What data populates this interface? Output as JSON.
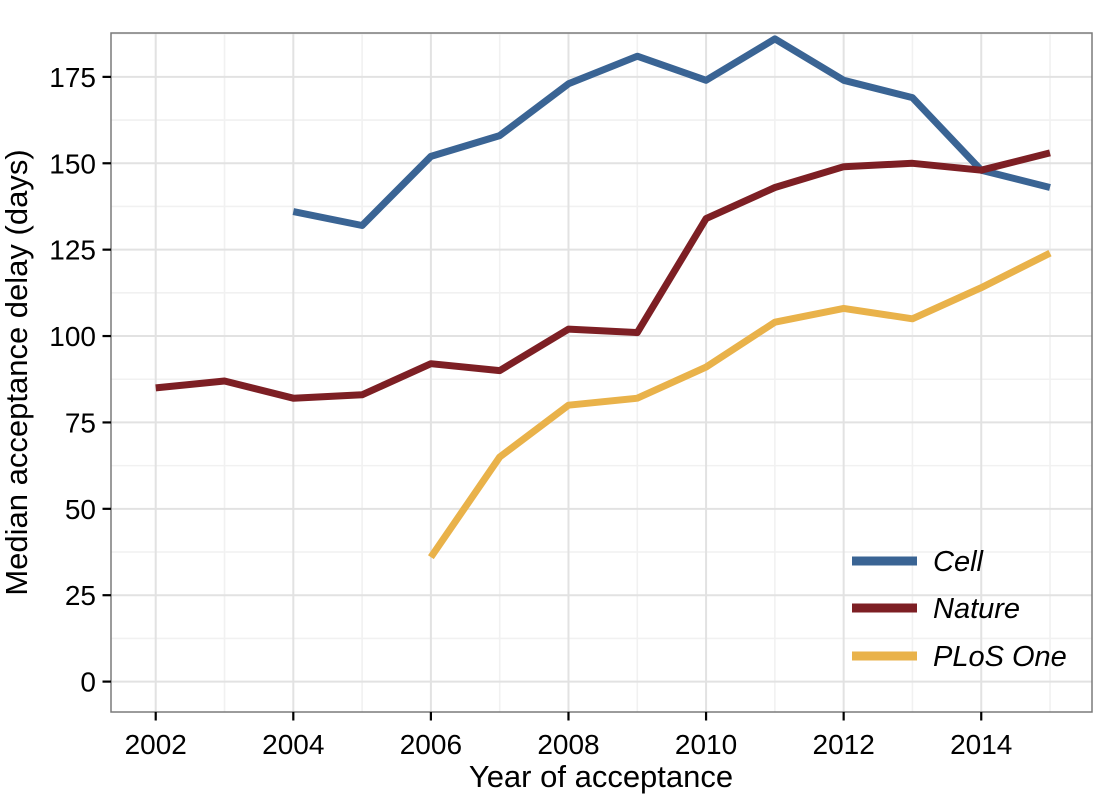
{
  "chart_data": {
    "type": "line",
    "title": "",
    "xlabel": "Year of acceptance",
    "ylabel": "Median acceptance delay (days)",
    "x_ticks": [
      2002,
      2004,
      2006,
      2008,
      2010,
      2012,
      2014
    ],
    "y_ticks": [
      0,
      25,
      50,
      75,
      100,
      125,
      150,
      175
    ],
    "x_range": [
      2001.35,
      2015.61
    ],
    "y_range": [
      -8.8,
      187.7
    ],
    "grid": {
      "on": true,
      "major_color": "#E2E2E2",
      "minor_color": "#F1F1F1",
      "minor_x": [
        2003,
        2005,
        2007,
        2009,
        2011,
        2013,
        2015
      ],
      "minor_y": [
        12.5,
        37.5,
        62.5,
        87.5,
        112.5,
        137.5,
        162.5,
        187.5
      ]
    },
    "panel_border_color": "#7A7A7A",
    "legend": {
      "position": "inside-bottom-right",
      "items": [
        "Cell",
        "Nature",
        "PLoS One"
      ]
    },
    "series": [
      {
        "name": "Cell",
        "color": "#3A6494",
        "x": [
          2004,
          2005,
          2006,
          2007,
          2008,
          2009,
          2010,
          2011,
          2012,
          2013,
          2014,
          2015
        ],
        "values": [
          136,
          132,
          152,
          158,
          173,
          181,
          174,
          186,
          174,
          169,
          148,
          143
        ]
      },
      {
        "name": "Nature",
        "color": "#7D1F24",
        "x": [
          2002,
          2003,
          2004,
          2005,
          2006,
          2007,
          2008,
          2009,
          2010,
          2011,
          2012,
          2013,
          2014,
          2015
        ],
        "values": [
          85,
          87,
          82,
          83,
          92,
          90,
          102,
          101,
          134,
          143,
          149,
          150,
          148,
          153
        ]
      },
      {
        "name": "PLoS One",
        "color": "#E9B24A",
        "x": [
          2006,
          2007,
          2008,
          2009,
          2010,
          2011,
          2012,
          2013,
          2014,
          2015
        ],
        "values": [
          36,
          65,
          80,
          82,
          91,
          104,
          108,
          105,
          114,
          124
        ]
      }
    ]
  }
}
